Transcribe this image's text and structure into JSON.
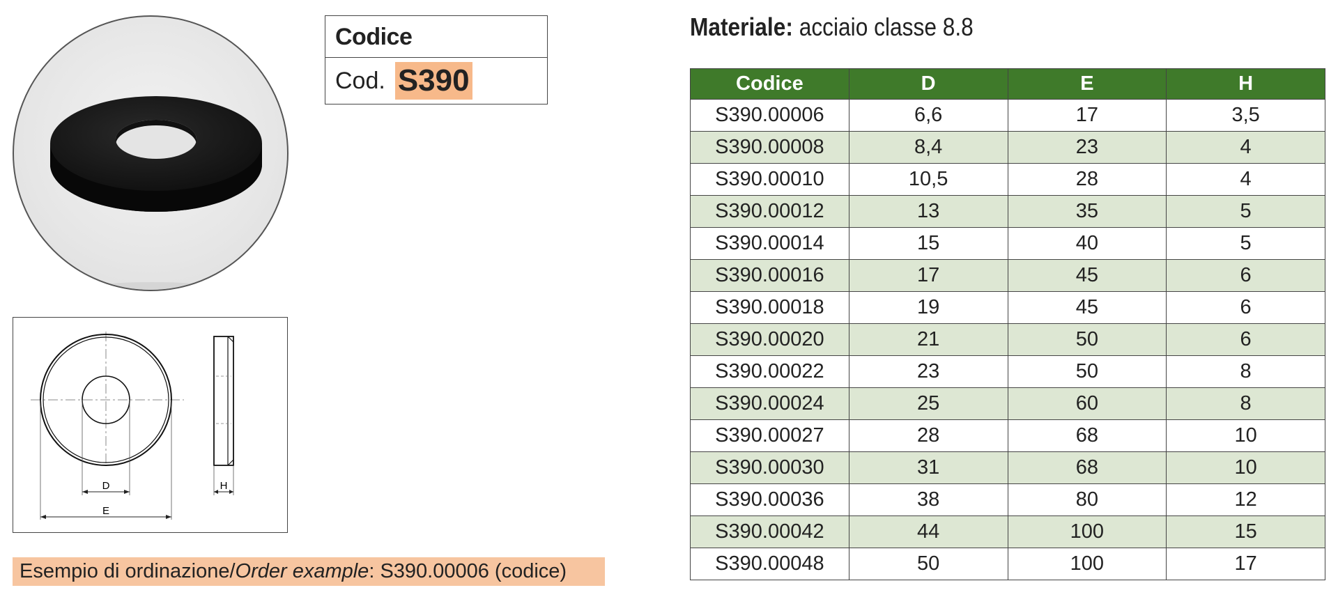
{
  "code_box": {
    "header": "Codice",
    "cod_label": "Cod.",
    "cod_value": "S390"
  },
  "drawing": {
    "label_d": "D",
    "label_e": "E",
    "label_h": "H"
  },
  "order_example": {
    "prefix": "Esempio di ordinazione/",
    "italic": "Order example",
    "suffix": ": S390.00006 (codice)"
  },
  "material": {
    "label": "Materiale:",
    "value": "acciaio classe 8.8"
  },
  "table": {
    "headers": [
      "Codice",
      "D",
      "E",
      "H"
    ],
    "rows": [
      [
        "S390.00006",
        "6,6",
        "17",
        "3,5"
      ],
      [
        "S390.00008",
        "8,4",
        "23",
        "4"
      ],
      [
        "S390.00010",
        "10,5",
        "28",
        "4"
      ],
      [
        "S390.00012",
        "13",
        "35",
        "5"
      ],
      [
        "S390.00014",
        "15",
        "40",
        "5"
      ],
      [
        "S390.00016",
        "17",
        "45",
        "6"
      ],
      [
        "S390.00018",
        "19",
        "45",
        "6"
      ],
      [
        "S390.00020",
        "21",
        "50",
        "6"
      ],
      [
        "S390.00022",
        "23",
        "50",
        "8"
      ],
      [
        "S390.00024",
        "25",
        "60",
        "8"
      ],
      [
        "S390.00027",
        "28",
        "68",
        "10"
      ],
      [
        "S390.00030",
        "31",
        "68",
        "10"
      ],
      [
        "S390.00036",
        "38",
        "80",
        "12"
      ],
      [
        "S390.00042",
        "44",
        "100",
        "15"
      ],
      [
        "S390.00048",
        "50",
        "100",
        "17"
      ]
    ]
  },
  "colors": {
    "header_green": "#3f7a2a",
    "row_alt": "#dde7d3",
    "highlight_orange": "#f7b98a"
  }
}
